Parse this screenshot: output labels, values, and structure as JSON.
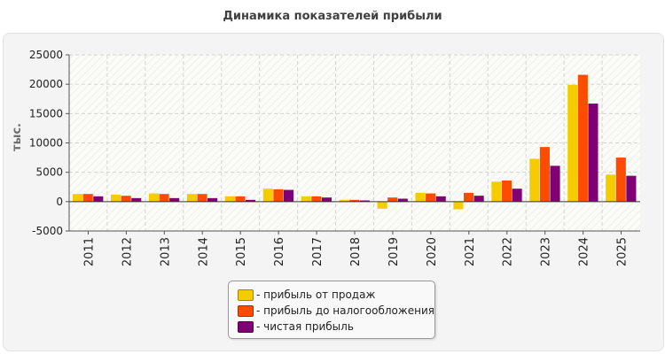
{
  "title": "Динамика показателей прибыли",
  "chart_data": {
    "type": "bar",
    "title": "Динамика показателей прибыли",
    "ylabel": "тыс.",
    "xlabel": "",
    "ylim": [
      -5000,
      25000
    ],
    "yticks": [
      -5000,
      0,
      5000,
      10000,
      15000,
      20000,
      25000
    ],
    "grid": true,
    "legend_position": "bottom",
    "categories": [
      "2011",
      "2012",
      "2013",
      "2014",
      "2015",
      "2016",
      "2017",
      "2018",
      "2019",
      "2020",
      "2021",
      "2022",
      "2023",
      "2024",
      "2025"
    ],
    "series": [
      {
        "name": "- прибыль от продаж",
        "color": "#f5cc00",
        "values": [
          1300,
          1200,
          1400,
          1300,
          900,
          2200,
          900,
          300,
          -1200,
          1500,
          -1300,
          3400,
          7300,
          19900,
          4600
        ]
      },
      {
        "name": "- прибыль до налогообложения",
        "color": "#fc4c00",
        "values": [
          1300,
          1000,
          1300,
          1300,
          900,
          2100,
          900,
          300,
          700,
          1400,
          1500,
          3600,
          9300,
          21600,
          7500
        ]
      },
      {
        "name": "- чистая прибыль",
        "color": "#7e0074",
        "values": [
          900,
          600,
          600,
          600,
          300,
          2000,
          700,
          200,
          500,
          900,
          1000,
          2200,
          6100,
          16700,
          4400
        ]
      }
    ]
  }
}
